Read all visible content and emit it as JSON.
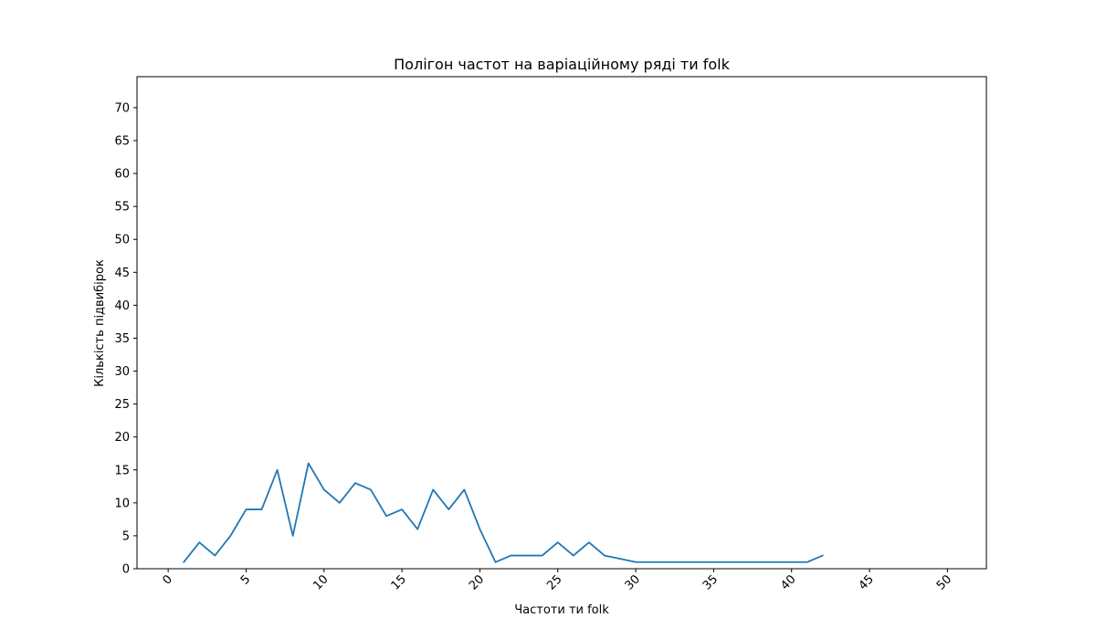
{
  "chart_data": {
    "type": "line",
    "title": "Полігон частот на варіаційному ряді ти folk",
    "xlabel": "Частоти ти folk",
    "ylabel": "Кількість підвибірок",
    "xlim": [
      -2,
      52.5
    ],
    "ylim": [
      0,
      74.7
    ],
    "xticks": [
      0,
      5,
      10,
      15,
      20,
      25,
      30,
      35,
      40,
      45,
      50
    ],
    "yticks": [
      0,
      5,
      10,
      15,
      20,
      25,
      30,
      35,
      40,
      45,
      50,
      55,
      60,
      65,
      70
    ],
    "x_tick_rotation": 45,
    "grid": false,
    "legend": "none",
    "series": [
      {
        "color": "#1f77b4",
        "x": [
          1,
          2,
          3,
          4,
          5,
          6,
          7,
          8,
          9,
          10,
          11,
          12,
          13,
          14,
          15,
          16,
          17,
          18,
          19,
          20,
          21,
          22,
          23,
          24,
          25,
          26,
          27,
          28,
          29,
          30,
          31,
          32,
          33,
          34,
          35,
          36,
          37,
          38,
          39,
          40,
          41,
          42
        ],
        "y": [
          1,
          4,
          2,
          5,
          9,
          9,
          15,
          5,
          16,
          12,
          10,
          13,
          12,
          8,
          9,
          6,
          12,
          9,
          12,
          6,
          1,
          2,
          2,
          2,
          4,
          2,
          4,
          2,
          1.5,
          1,
          1,
          1,
          1,
          1,
          1,
          1,
          1,
          1,
          1,
          1,
          1,
          2
        ]
      }
    ]
  }
}
